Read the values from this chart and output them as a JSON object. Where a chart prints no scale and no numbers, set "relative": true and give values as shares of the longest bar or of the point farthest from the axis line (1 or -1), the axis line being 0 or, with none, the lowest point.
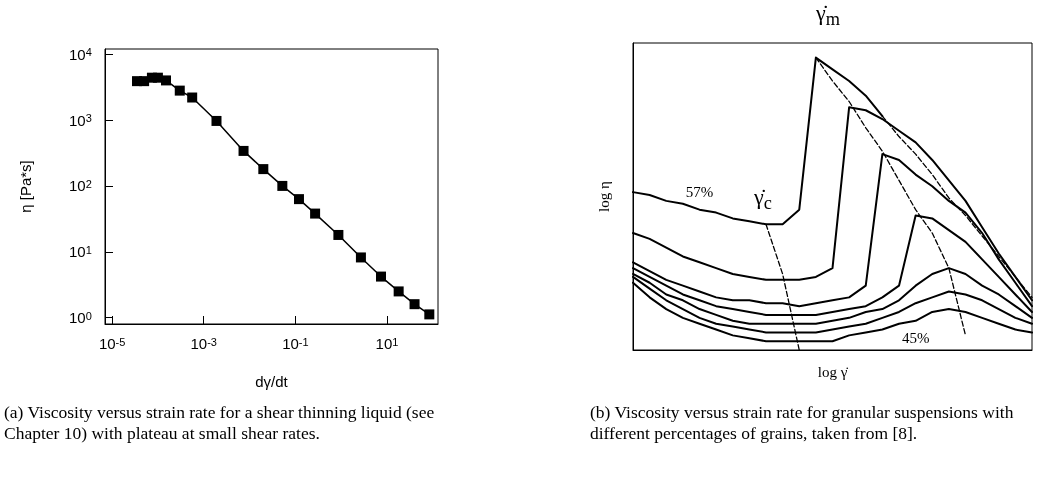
{
  "chart_data": [
    {
      "type": "line",
      "xlabel": "dγ/dt",
      "ylabel": "η [Pa*s]",
      "log": "xy",
      "marker": "square",
      "x": [
        3.5e-05,
        5e-05,
        7.4e-05,
        0.0001,
        0.00015,
        0.0003,
        0.00056,
        0.0019,
        0.0074,
        0.02,
        0.052,
        0.12,
        0.27,
        0.87,
        2.7,
        7.4,
        18,
        40,
        84
      ],
      "series": [
        {
          "color": "#000000",
          "values": [
            3900,
            3900,
            4400,
            4400,
            4000,
            2800,
            2200,
            970,
            340,
            180,
            100,
            63,
            38,
            18,
            8.2,
            4.2,
            2.5,
            1.6,
            1.12
          ]
        }
      ],
      "xlim": [
        7e-06,
        130
      ],
      "ylim": [
        0.8,
        12000
      ],
      "xticks": [
        {
          "value": 1e-05,
          "label": "10$^{-5}$"
        },
        {
          "value": 0.001,
          "label": "10$^{-3}$"
        },
        {
          "value": 0.1,
          "label": "10$^{-1}$"
        },
        {
          "value": 10,
          "label": "10$^{1}$"
        }
      ],
      "yticks": [
        {
          "value": 1,
          "label": "10$^{0}$"
        },
        {
          "value": 10,
          "label": "10$^{1}$"
        },
        {
          "value": 100,
          "label": "10$^{2}$"
        },
        {
          "value": 1000,
          "label": "10$^{3}$"
        },
        {
          "value": 10000,
          "label": "10$^{4}$"
        }
      ],
      "annotations": [
        "(a) Viscosity versus strain rate for a shear thinning liquid (see Chapter 10) with plateau at small shear rates."
      ]
    },
    {
      "type": "line",
      "relative": true,
      "xlabel": "log γ̇",
      "ylabel": "log η",
      "marker": "none",
      "categories": [
        null,
        null,
        null,
        null,
        null,
        null,
        null,
        null,
        null,
        null,
        null,
        null,
        null,
        null,
        null,
        null,
        null,
        null,
        null,
        null,
        null,
        null,
        null,
        null,
        null
      ],
      "series": [
        {
          "name": "57%",
          "color": "#000000",
          "values": [
            0.54,
            0.53,
            0.51,
            0.5,
            0.48,
            0.47,
            0.45,
            0.44,
            0.43,
            0.43,
            0.48,
            1.0,
            0.96,
            0.92,
            0.87,
            0.8,
            null,
            null,
            null,
            null,
            null,
            null,
            null,
            null,
            null
          ]
        },
        {
          "color": "#000000",
          "values": [
            0.4,
            0.38,
            0.35,
            0.32,
            0.3,
            0.28,
            0.26,
            0.25,
            0.24,
            0.24,
            0.24,
            0.25,
            0.28,
            0.83,
            0.82,
            0.79,
            0.75,
            0.71,
            0.65,
            0.58,
            0.51,
            0.42,
            0.33,
            0.25,
            0.17
          ]
        },
        {
          "color": "#000000",
          "values": [
            0.3,
            0.27,
            0.24,
            0.22,
            0.2,
            0.18,
            0.17,
            0.17,
            0.16,
            0.16,
            0.15,
            0.16,
            0.17,
            0.18,
            0.22,
            0.67,
            0.65,
            0.6,
            0.56,
            0.51,
            0.47,
            0.4,
            0.31,
            0.23,
            0.15
          ]
        },
        {
          "color": "#000000",
          "values": [
            0.28,
            0.25,
            0.22,
            0.19,
            0.17,
            0.15,
            0.14,
            0.13,
            0.12,
            0.12,
            0.12,
            0.12,
            0.13,
            0.14,
            0.15,
            0.18,
            0.22,
            0.46,
            0.45,
            0.41,
            0.37,
            0.31,
            0.25,
            0.19,
            0.13
          ]
        },
        {
          "color": "#000000",
          "values": [
            0.26,
            0.23,
            0.19,
            0.17,
            0.14,
            0.12,
            0.1,
            0.09,
            0.09,
            0.09,
            0.09,
            0.09,
            0.1,
            0.11,
            0.13,
            0.14,
            0.17,
            0.22,
            0.26,
            0.28,
            0.26,
            0.22,
            0.19,
            0.15,
            0.11
          ]
        },
        {
          "color": "#000000",
          "values": [
            0.25,
            0.21,
            0.17,
            0.14,
            0.11,
            0.09,
            0.08,
            0.07,
            0.06,
            0.06,
            0.06,
            0.06,
            0.07,
            0.08,
            0.09,
            0.11,
            0.13,
            0.16,
            0.18,
            0.2,
            0.19,
            0.17,
            0.14,
            0.11,
            0.09
          ]
        },
        {
          "name": "45%",
          "color": "#000000",
          "values": [
            0.23,
            0.18,
            0.14,
            0.11,
            0.09,
            0.07,
            0.05,
            0.04,
            0.03,
            0.03,
            0.03,
            0.03,
            0.03,
            0.05,
            0.06,
            0.07,
            0.09,
            0.1,
            0.13,
            0.14,
            0.13,
            0.11,
            0.09,
            0.07,
            0.06
          ]
        },
        {
          "color": "#000000",
          "line_style": "dashed",
          "values": [
            null,
            null,
            null,
            null,
            null,
            null,
            null,
            null,
            null,
            null,
            null,
            null,
            null,
            null,
            null,
            0.8,
            0.73,
            0.67,
            0.6,
            0.52,
            0.46,
            0.39,
            0.32,
            0.25,
            0.18
          ]
        },
        {
          "color": "#000000",
          "line_style": "dashed",
          "values": [
            null,
            null,
            null,
            null,
            null,
            null,
            null,
            null,
            0.43,
            0.26,
            0.0,
            null,
            null,
            null,
            null,
            null,
            null,
            null,
            null,
            null,
            null,
            null,
            null,
            null,
            null
          ]
        },
        {
          "color": "#000000",
          "line_style": "dashed",
          "values": [
            null,
            null,
            null,
            null,
            null,
            null,
            null,
            null,
            null,
            null,
            null,
            1.0,
            0.92,
            0.85,
            0.76,
            0.68,
            0.58,
            0.48,
            0.4,
            0.28,
            0.05,
            null,
            null,
            null,
            null
          ]
        }
      ],
      "annotations": [
        "γ̇$_{m}$",
        "γ̇$_{c}$",
        "(b) Viscosity versus strain rate for granular suspensions with different percentages of grains, taken from [8]."
      ]
    }
  ]
}
